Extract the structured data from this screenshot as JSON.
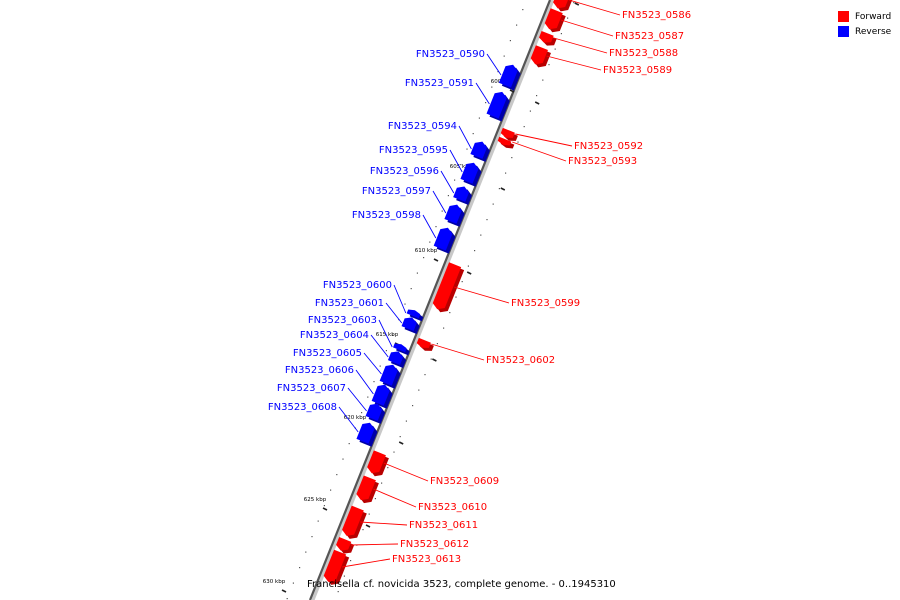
{
  "legend": {
    "forward": {
      "label": "Forward",
      "color": "#ff0000"
    },
    "reverse": {
      "label": "Reverse",
      "color": "#0000ff"
    }
  },
  "caption": "Francisella cf. novicida 3523, complete genome. - 0..1945310",
  "axis_ticks": [
    "600 kbp",
    "605 kbp",
    "610 kbp",
    "615 kbp",
    "620 kbp",
    "625 kbp",
    "630 kbp"
  ],
  "genes": [
    {
      "id": "FN3523_0586",
      "strand": "forward"
    },
    {
      "id": "FN3523_0587",
      "strand": "forward"
    },
    {
      "id": "FN3523_0588",
      "strand": "forward"
    },
    {
      "id": "FN3523_0589",
      "strand": "forward"
    },
    {
      "id": "FN3523_0590",
      "strand": "reverse"
    },
    {
      "id": "FN3523_0591",
      "strand": "reverse"
    },
    {
      "id": "FN3523_0592",
      "strand": "forward"
    },
    {
      "id": "FN3523_0593",
      "strand": "forward"
    },
    {
      "id": "FN3523_0594",
      "strand": "reverse"
    },
    {
      "id": "FN3523_0595",
      "strand": "reverse"
    },
    {
      "id": "FN3523_0596",
      "strand": "reverse"
    },
    {
      "id": "FN3523_0597",
      "strand": "reverse"
    },
    {
      "id": "FN3523_0598",
      "strand": "reverse"
    },
    {
      "id": "FN3523_0599",
      "strand": "forward"
    },
    {
      "id": "FN3523_0600",
      "strand": "reverse"
    },
    {
      "id": "FN3523_0601",
      "strand": "reverse"
    },
    {
      "id": "FN3523_0602",
      "strand": "forward"
    },
    {
      "id": "FN3523_0603",
      "strand": "reverse"
    },
    {
      "id": "FN3523_0604",
      "strand": "reverse"
    },
    {
      "id": "FN3523_0605",
      "strand": "reverse"
    },
    {
      "id": "FN3523_0606",
      "strand": "reverse"
    },
    {
      "id": "FN3523_0607",
      "strand": "reverse"
    },
    {
      "id": "FN3523_0608",
      "strand": "reverse"
    },
    {
      "id": "FN3523_0609",
      "strand": "forward"
    },
    {
      "id": "FN3523_0610",
      "strand": "forward"
    },
    {
      "id": "FN3523_0611",
      "strand": "forward"
    },
    {
      "id": "FN3523_0612",
      "strand": "forward"
    },
    {
      "id": "FN3523_0613",
      "strand": "forward"
    }
  ]
}
